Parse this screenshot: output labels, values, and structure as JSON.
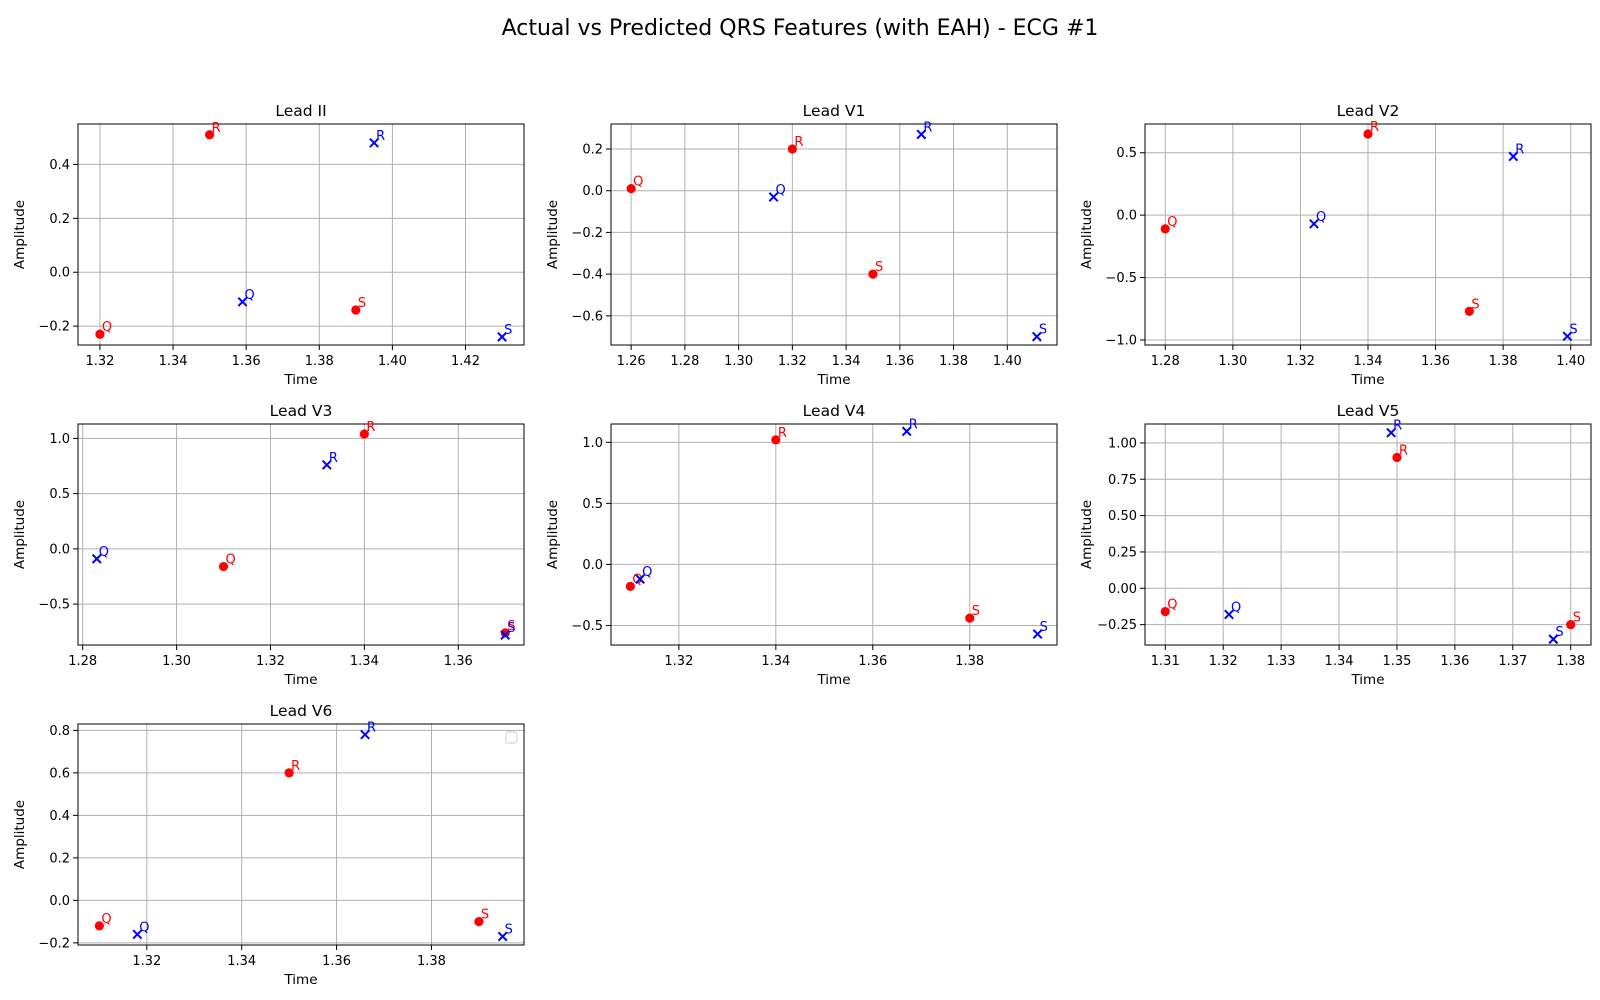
{
  "figure": {
    "title": "Actual vs Predicted QRS Features (with EAH) - ECG #1"
  },
  "colors": {
    "actual": "#ff0000",
    "predicted": "#0000ff",
    "grid": "#b0b0b0",
    "axis": "#000000"
  },
  "chart_data": [
    {
      "type": "scatter",
      "title": "Lead II",
      "xlabel": "Time",
      "ylabel": "Amplitude",
      "xlim": [
        1.314,
        1.436
      ],
      "ylim": [
        -0.27,
        0.55
      ],
      "grid": true,
      "xticks": [
        1.32,
        1.34,
        1.36,
        1.38,
        1.4,
        1.42
      ],
      "xtick_labels": [
        "1.32",
        "1.34",
        "1.36",
        "1.38",
        "1.40",
        "1.42"
      ],
      "yticks": [
        -0.2,
        0.0,
        0.2,
        0.4
      ],
      "ytick_labels": [
        "−0.2",
        "0.0",
        "0.2",
        "0.4"
      ],
      "series": [
        {
          "marker": "circle",
          "color": "#ff0000",
          "points": [
            {
              "label": "Q",
              "x": 1.32,
              "y": -0.23
            },
            {
              "label": "R",
              "x": 1.35,
              "y": 0.51
            },
            {
              "label": "S",
              "x": 1.39,
              "y": -0.14
            }
          ]
        },
        {
          "marker": "x",
          "color": "#0000ff",
          "points": [
            {
              "label": "Q",
              "x": 1.359,
              "y": -0.11
            },
            {
              "label": "R",
              "x": 1.395,
              "y": 0.48
            },
            {
              "label": "S",
              "x": 1.43,
              "y": -0.24
            }
          ]
        }
      ]
    },
    {
      "type": "scatter",
      "title": "Lead V1",
      "xlabel": "Time",
      "ylabel": "Amplitude",
      "xlim": [
        1.2525,
        1.4185
      ],
      "ylim": [
        -0.74,
        0.32
      ],
      "grid": true,
      "xticks": [
        1.26,
        1.28,
        1.3,
        1.32,
        1.34,
        1.36,
        1.38,
        1.4
      ],
      "xtick_labels": [
        "1.26",
        "1.28",
        "1.30",
        "1.32",
        "1.34",
        "1.36",
        "1.38",
        "1.40"
      ],
      "yticks": [
        -0.6,
        -0.4,
        -0.2,
        0.0,
        0.2
      ],
      "ytick_labels": [
        "−0.6",
        "−0.4",
        "−0.2",
        "0.0",
        "0.2"
      ],
      "series": [
        {
          "marker": "circle",
          "color": "#ff0000",
          "points": [
            {
              "label": "Q",
              "x": 1.26,
              "y": 0.01
            },
            {
              "label": "R",
              "x": 1.32,
              "y": 0.2
            },
            {
              "label": "S",
              "x": 1.35,
              "y": -0.4
            }
          ]
        },
        {
          "marker": "x",
          "color": "#0000ff",
          "points": [
            {
              "label": "Q",
              "x": 1.313,
              "y": -0.03
            },
            {
              "label": "R",
              "x": 1.368,
              "y": 0.27
            },
            {
              "label": "S",
              "x": 1.411,
              "y": -0.7
            }
          ]
        }
      ]
    },
    {
      "type": "scatter",
      "title": "Lead V2",
      "xlabel": "Time",
      "ylabel": "Amplitude",
      "xlim": [
        1.274,
        1.406
      ],
      "ylim": [
        -1.04,
        0.73
      ],
      "grid": true,
      "xticks": [
        1.28,
        1.3,
        1.32,
        1.34,
        1.36,
        1.38,
        1.4
      ],
      "xtick_labels": [
        "1.28",
        "1.30",
        "1.32",
        "1.34",
        "1.36",
        "1.38",
        "1.40"
      ],
      "yticks": [
        -1.0,
        -0.5,
        0.0,
        0.5
      ],
      "ytick_labels": [
        "−1.0",
        "−0.5",
        "0.0",
        "0.5"
      ],
      "series": [
        {
          "marker": "circle",
          "color": "#ff0000",
          "points": [
            {
              "label": "Q",
              "x": 1.28,
              "y": -0.11
            },
            {
              "label": "R",
              "x": 1.34,
              "y": 0.65
            },
            {
              "label": "S",
              "x": 1.37,
              "y": -0.77
            }
          ]
        },
        {
          "marker": "x",
          "color": "#0000ff",
          "points": [
            {
              "label": "Q",
              "x": 1.324,
              "y": -0.07
            },
            {
              "label": "R",
              "x": 1.383,
              "y": 0.47
            },
            {
              "label": "S",
              "x": 1.399,
              "y": -0.97
            }
          ]
        }
      ]
    },
    {
      "type": "scatter",
      "title": "Lead V3",
      "xlabel": "Time",
      "ylabel": "Amplitude",
      "xlim": [
        1.279,
        1.374
      ],
      "ylim": [
        -0.87,
        1.13
      ],
      "grid": true,
      "xticks": [
        1.28,
        1.3,
        1.32,
        1.34,
        1.36
      ],
      "xtick_labels": [
        "1.28",
        "1.30",
        "1.32",
        "1.34",
        "1.36"
      ],
      "yticks": [
        -0.5,
        0.0,
        0.5,
        1.0
      ],
      "ytick_labels": [
        "−0.5",
        "0.0",
        "0.5",
        "1.0"
      ],
      "series": [
        {
          "marker": "circle",
          "color": "#ff0000",
          "points": [
            {
              "label": "Q",
              "x": 1.31,
              "y": -0.16
            },
            {
              "label": "R",
              "x": 1.34,
              "y": 1.04
            },
            {
              "label": "S",
              "x": 1.37,
              "y": -0.76
            }
          ]
        },
        {
          "marker": "x",
          "color": "#0000ff",
          "points": [
            {
              "label": "Q",
              "x": 1.283,
              "y": -0.09
            },
            {
              "label": "R",
              "x": 1.332,
              "y": 0.76
            },
            {
              "label": "S",
              "x": 1.37,
              "y": -0.78
            }
          ]
        }
      ]
    },
    {
      "type": "scatter",
      "title": "Lead V4",
      "xlabel": "Time",
      "ylabel": "Amplitude",
      "xlim": [
        1.306,
        1.398
      ],
      "ylim": [
        -0.66,
        1.15
      ],
      "grid": true,
      "xticks": [
        1.32,
        1.34,
        1.36,
        1.38
      ],
      "xtick_labels": [
        "1.32",
        "1.34",
        "1.36",
        "1.38"
      ],
      "yticks": [
        -0.5,
        0.0,
        0.5,
        1.0
      ],
      "ytick_labels": [
        "−0.5",
        "0.0",
        "0.5",
        "1.0"
      ],
      "series": [
        {
          "marker": "circle",
          "color": "#ff0000",
          "points": [
            {
              "label": "Q",
              "x": 1.31,
              "y": -0.18
            },
            {
              "label": "R",
              "x": 1.34,
              "y": 1.02
            },
            {
              "label": "S",
              "x": 1.38,
              "y": -0.44
            }
          ]
        },
        {
          "marker": "x",
          "color": "#0000ff",
          "points": [
            {
              "label": "Q",
              "x": 1.312,
              "y": -0.12
            },
            {
              "label": "R",
              "x": 1.367,
              "y": 1.09
            },
            {
              "label": "S",
              "x": 1.394,
              "y": -0.57
            }
          ]
        }
      ]
    },
    {
      "type": "scatter",
      "title": "Lead V5",
      "xlabel": "Time",
      "ylabel": "Amplitude",
      "xlim": [
        1.3065,
        1.3835
      ],
      "ylim": [
        -0.39,
        1.13
      ],
      "grid": true,
      "xticks": [
        1.31,
        1.32,
        1.33,
        1.34,
        1.35,
        1.36,
        1.37,
        1.38
      ],
      "xtick_labels": [
        "1.31",
        "1.32",
        "1.33",
        "1.34",
        "1.35",
        "1.36",
        "1.37",
        "1.38"
      ],
      "yticks": [
        -0.25,
        0.0,
        0.25,
        0.5,
        0.75,
        1.0
      ],
      "ytick_labels": [
        "−0.25",
        "0.00",
        "0.25",
        "0.50",
        "0.75",
        "1.00"
      ],
      "series": [
        {
          "marker": "circle",
          "color": "#ff0000",
          "points": [
            {
              "label": "Q",
              "x": 1.31,
              "y": -0.16
            },
            {
              "label": "R",
              "x": 1.35,
              "y": 0.9
            },
            {
              "label": "S",
              "x": 1.38,
              "y": -0.25
            }
          ]
        },
        {
          "marker": "x",
          "color": "#0000ff",
          "points": [
            {
              "label": "Q",
              "x": 1.321,
              "y": -0.18
            },
            {
              "label": "R",
              "x": 1.349,
              "y": 1.07
            },
            {
              "label": "S",
              "x": 1.377,
              "y": -0.35
            }
          ]
        }
      ]
    },
    {
      "type": "scatter",
      "title": "Lead V6",
      "xlabel": "Time",
      "ylabel": "Amplitude",
      "xlim": [
        1.3055,
        1.3995
      ],
      "ylim": [
        -0.21,
        0.83
      ],
      "grid": true,
      "xticks": [
        1.32,
        1.34,
        1.36,
        1.38
      ],
      "xtick_labels": [
        "1.32",
        "1.34",
        "1.36",
        "1.38"
      ],
      "yticks": [
        -0.2,
        0.0,
        0.2,
        0.4,
        0.6,
        0.8
      ],
      "ytick_labels": [
        "−0.2",
        "0.0",
        "0.2",
        "0.4",
        "0.6",
        "0.8"
      ],
      "legend": "top-right",
      "series": [
        {
          "marker": "circle",
          "color": "#ff0000",
          "points": [
            {
              "label": "Q",
              "x": 1.31,
              "y": -0.12
            },
            {
              "label": "R",
              "x": 1.35,
              "y": 0.6
            },
            {
              "label": "S",
              "x": 1.39,
              "y": -0.1
            }
          ]
        },
        {
          "marker": "x",
          "color": "#0000ff",
          "points": [
            {
              "label": "Q",
              "x": 1.318,
              "y": -0.16
            },
            {
              "label": "R",
              "x": 1.366,
              "y": 0.78
            },
            {
              "label": "S",
              "x": 1.395,
              "y": -0.17
            }
          ]
        }
      ]
    }
  ]
}
